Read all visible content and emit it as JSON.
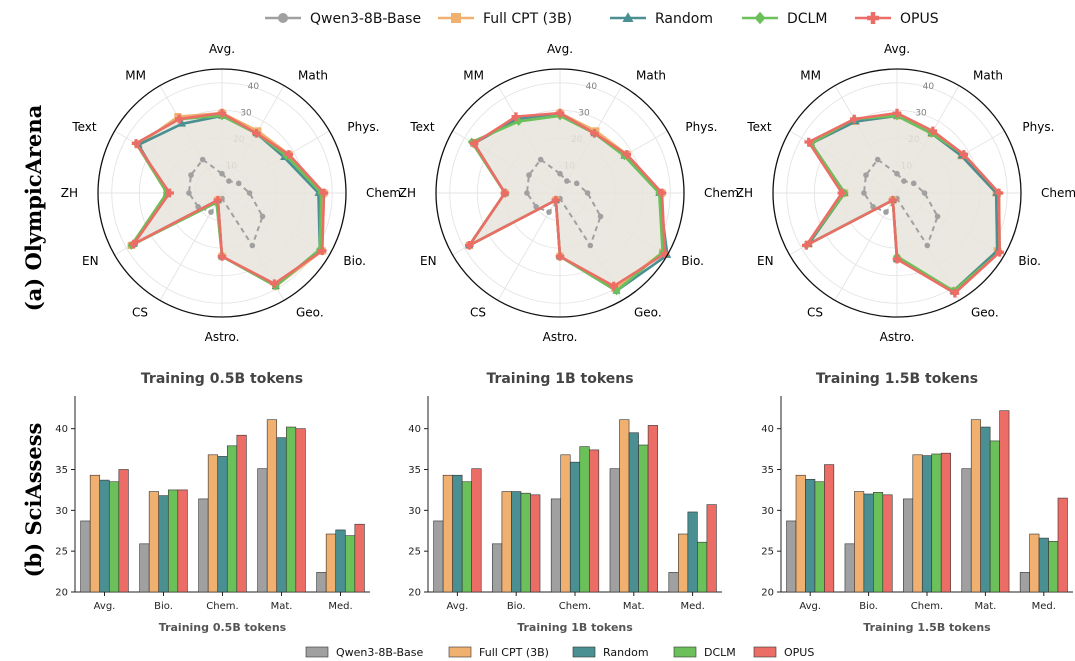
{
  "colors": {
    "Qwen3-8B-Base": "#a0a0a0",
    "Full CPT (3B)": "#f0b070",
    "Random": "#4a8f92",
    "DCLM": "#6cc05a",
    "OPUS": "#ec6d66",
    "fill": "#e8e4dc"
  },
  "top_legend": [
    "Qwen3-8B-Base",
    "Full CPT (3B)",
    "Random",
    "DCLM",
    "OPUS"
  ],
  "bottom_legend": [
    "Qwen3-8B-Base",
    "Full CPT (3B)",
    "Random",
    "DCLM",
    "OPUS"
  ],
  "row_labels": {
    "top": "(a) OlympicArena",
    "bottom": "(b) SciAssess"
  },
  "chart_data": [
    {
      "type": "radar",
      "panel": "OlympicArena 1",
      "categories": [
        "Avg.",
        "Math",
        "Phys.",
        "Chem.",
        "Bio.",
        "Geo.",
        "Astro.",
        "CS",
        "EN",
        "ZH",
        "Text",
        "MM"
      ],
      "rlim": [
        0,
        45
      ],
      "rticks": [
        10,
        20,
        30,
        40
      ],
      "rtick_labels": [
        "10",
        "20",
        "30",
        "40"
      ],
      "series": [
        {
          "name": "Qwen3-8B-Base",
          "values": [
            7,
            5,
            7,
            10,
            17,
            22,
            2,
            8,
            10,
            12,
            13,
            14
          ]
        },
        {
          "name": "Full CPT (3B)",
          "values": [
            29,
            26,
            28,
            37,
            42,
            39,
            23,
            3,
            38,
            20,
            35,
            32
          ]
        },
        {
          "name": "Random",
          "values": [
            28,
            25,
            26,
            35,
            41,
            39,
            23,
            3,
            37,
            20,
            35,
            29
          ]
        },
        {
          "name": "DCLM",
          "values": [
            28,
            25,
            27,
            36,
            41,
            39,
            23,
            4,
            38,
            20,
            36,
            31
          ]
        },
        {
          "name": "OPUS",
          "values": [
            29,
            25,
            28,
            37,
            42,
            38,
            23,
            3,
            37,
            19,
            36,
            31
          ]
        }
      ]
    },
    {
      "type": "radar",
      "panel": "OlympicArena 2",
      "categories": [
        "Avg.",
        "Math",
        "Phys.",
        "Chem.",
        "Bio.",
        "Geo.",
        "Astro.",
        "CS",
        "EN",
        "ZH",
        "Text",
        "MM"
      ],
      "rlim": [
        0,
        45
      ],
      "rticks": [
        10,
        20,
        30,
        40
      ],
      "rtick_labels": [
        "10",
        "20",
        "30",
        "40"
      ],
      "series": [
        {
          "name": "Qwen3-8B-Base",
          "values": [
            7,
            5,
            7,
            10,
            17,
            22,
            2,
            8,
            10,
            12,
            13,
            14
          ]
        },
        {
          "name": "Full CPT (3B)",
          "values": [
            29,
            26,
            28,
            37,
            43,
            40,
            23,
            3,
            38,
            20,
            36,
            31
          ]
        },
        {
          "name": "Random",
          "values": [
            29,
            25,
            27,
            36,
            45,
            41,
            23,
            3,
            38,
            20,
            36,
            31
          ]
        },
        {
          "name": "DCLM",
          "values": [
            28,
            25,
            27,
            36,
            43,
            41,
            23,
            3,
            38,
            20,
            37,
            30
          ]
        },
        {
          "name": "OPUS",
          "values": [
            29,
            25,
            28,
            37,
            44,
            39,
            23,
            3,
            38,
            20,
            36,
            32
          ]
        }
      ]
    },
    {
      "type": "radar",
      "panel": "OlympicArena 3",
      "categories": [
        "Avg.",
        "Math",
        "Phys.",
        "Chem.",
        "Bio.",
        "Geo.",
        "Astro.",
        "CS",
        "EN",
        "ZH",
        "Text",
        "MM"
      ],
      "rlim": [
        0,
        45
      ],
      "rticks": [
        10,
        20,
        30,
        40
      ],
      "rtick_labels": [
        "10",
        "20",
        "30",
        "40"
      ],
      "series": [
        {
          "name": "Qwen3-8B-Base",
          "values": [
            7,
            5,
            7,
            10,
            17,
            22,
            2,
            8,
            10,
            12,
            13,
            14
          ]
        },
        {
          "name": "Full CPT (3B)",
          "values": [
            28,
            25,
            27,
            36,
            42,
            41,
            24,
            3,
            37,
            19,
            36,
            30
          ]
        },
        {
          "name": "Random",
          "values": [
            28,
            25,
            27,
            36,
            42,
            41,
            24,
            3,
            37,
            19,
            36,
            30
          ]
        },
        {
          "name": "DCLM",
          "values": [
            28,
            25,
            28,
            37,
            43,
            41,
            23,
            3,
            38,
            19,
            36,
            31
          ]
        },
        {
          "name": "OPUS",
          "values": [
            29,
            26,
            28,
            37,
            43,
            42,
            24,
            3,
            38,
            20,
            37,
            31
          ]
        }
      ]
    },
    {
      "type": "bar",
      "title": "Training 0.5B tokens",
      "xlabel": "Training 0.5B tokens",
      "categories": [
        "Avg.",
        "Bio.",
        "Chem.",
        "Mat.",
        "Med."
      ],
      "ylim": [
        20,
        44
      ],
      "yticks": [
        20,
        25,
        30,
        35,
        40
      ],
      "series": [
        {
          "name": "Qwen3-8B-Base",
          "values": [
            28.7,
            25.9,
            31.4,
            35.1,
            22.4
          ]
        },
        {
          "name": "Full CPT (3B)",
          "values": [
            34.3,
            32.3,
            36.8,
            41.1,
            27.1
          ]
        },
        {
          "name": "Random",
          "values": [
            33.7,
            31.8,
            36.6,
            38.9,
            27.6
          ]
        },
        {
          "name": "DCLM",
          "values": [
            33.5,
            32.5,
            37.9,
            40.2,
            26.9
          ]
        },
        {
          "name": "OPUS",
          "values": [
            35.0,
            32.5,
            39.2,
            40.0,
            28.3
          ]
        }
      ]
    },
    {
      "type": "bar",
      "title": "Training 1B tokens",
      "xlabel": "Training 1B tokens",
      "categories": [
        "Avg.",
        "Bio.",
        "Chem.",
        "Mat.",
        "Med."
      ],
      "ylim": [
        20,
        44
      ],
      "yticks": [
        20,
        25,
        30,
        35,
        40
      ],
      "series": [
        {
          "name": "Qwen3-8B-Base",
          "values": [
            28.7,
            25.9,
            31.4,
            35.1,
            22.4
          ]
        },
        {
          "name": "Full CPT (3B)",
          "values": [
            34.3,
            32.3,
            36.8,
            41.1,
            27.1
          ]
        },
        {
          "name": "Random",
          "values": [
            34.3,
            32.3,
            35.9,
            39.5,
            29.8
          ]
        },
        {
          "name": "DCLM",
          "values": [
            33.5,
            32.1,
            37.8,
            38.0,
            26.1
          ]
        },
        {
          "name": "OPUS",
          "values": [
            35.1,
            31.9,
            37.4,
            40.4,
            30.7
          ]
        }
      ]
    },
    {
      "type": "bar",
      "title": "Training 1.5B tokens",
      "xlabel": "Training 1.5B tokens",
      "categories": [
        "Avg.",
        "Bio.",
        "Chem.",
        "Mat.",
        "Med."
      ],
      "ylim": [
        20,
        44
      ],
      "yticks": [
        20,
        25,
        30,
        35,
        40
      ],
      "series": [
        {
          "name": "Qwen3-8B-Base",
          "values": [
            28.7,
            25.9,
            31.4,
            35.1,
            22.4
          ]
        },
        {
          "name": "Full CPT (3B)",
          "values": [
            34.3,
            32.3,
            36.8,
            41.1,
            27.1
          ]
        },
        {
          "name": "Random",
          "values": [
            33.8,
            32.0,
            36.7,
            40.2,
            26.6
          ]
        },
        {
          "name": "DCLM",
          "values": [
            33.5,
            32.2,
            36.9,
            38.5,
            26.2
          ]
        },
        {
          "name": "OPUS",
          "values": [
            35.6,
            31.9,
            37.0,
            42.2,
            31.5
          ]
        }
      ]
    }
  ]
}
